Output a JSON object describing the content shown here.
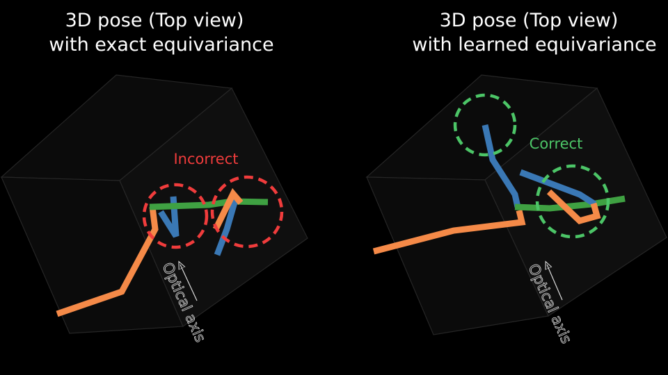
{
  "panels": [
    {
      "title_line1": "3D pose (Top view)",
      "title_line2": "with exact equivariance",
      "annotation": "Incorrect",
      "annotation_color": "#f03c3c",
      "axis_label": "Optical axis"
    },
    {
      "title_line1": "3D pose (Top view)",
      "title_line2": "with learned equivariance",
      "annotation": "Correct",
      "annotation_color": "#4cc567",
      "axis_label": "Optical axis"
    }
  ],
  "colors": {
    "orange": "#f58a48",
    "blue": "#3a78b5",
    "green": "#3fa142"
  }
}
